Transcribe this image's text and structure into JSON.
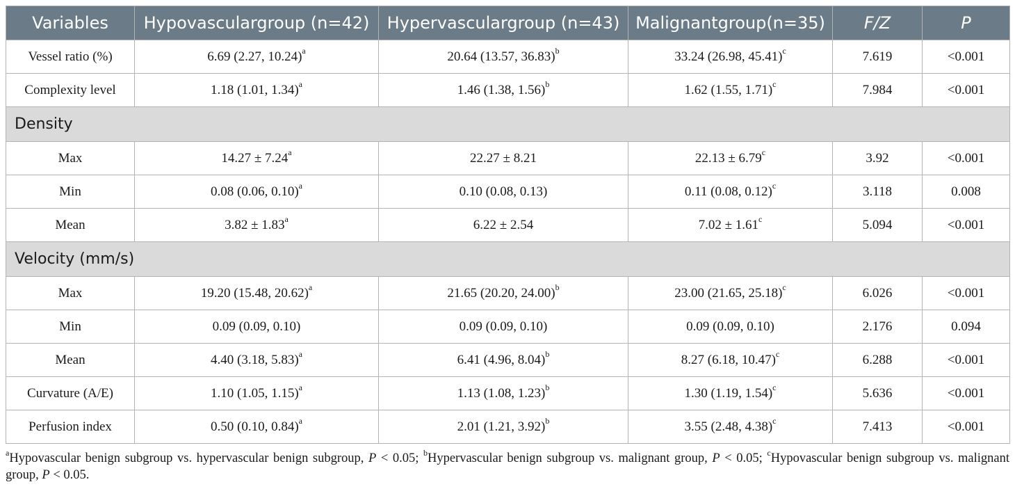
{
  "table": {
    "headers": [
      "Variables",
      "Hypovasculargroup (n=42)",
      "Hypervasculargroup (n=43)",
      "Malignantgroup(n=35)",
      "F/Z",
      "P"
    ],
    "rows": [
      {
        "label": "Vessel ratio (%)",
        "hypo": "6.69 (2.27, 10.24)",
        "hypo_sup": "a",
        "hyper": "20.64 (13.57, 36.83)",
        "hyper_sup": "b",
        "malig": "33.24 (26.98, 45.41)",
        "malig_sup": "c",
        "fz": "7.619",
        "p": "<0.001"
      },
      {
        "label": "Complexity level",
        "hypo": "1.18 (1.01, 1.34)",
        "hypo_sup": "a",
        "hyper": "1.46 (1.38, 1.56)",
        "hyper_sup": "b",
        "malig": "1.62 (1.55, 1.71)",
        "malig_sup": "c",
        "fz": "7.984",
        "p": "<0.001"
      },
      {
        "section": "Density"
      },
      {
        "label": "Max",
        "hypo": "14.27 ± 7.24",
        "hypo_sup": "a",
        "hyper": "22.27 ± 8.21",
        "hyper_sup": "",
        "malig": "22.13 ± 6.79",
        "malig_sup": "c",
        "fz": "3.92",
        "p": "<0.001"
      },
      {
        "label": "Min",
        "hypo": "0.08 (0.06, 0.10)",
        "hypo_sup": "a",
        "hyper": "0.10 (0.08, 0.13)",
        "hyper_sup": "",
        "malig": "0.11 (0.08, 0.12)",
        "malig_sup": "c",
        "fz": "3.118",
        "p": "0.008"
      },
      {
        "label": "Mean",
        "hypo": "3.82 ± 1.83",
        "hypo_sup": "a",
        "hyper": "6.22 ± 2.54",
        "hyper_sup": "",
        "malig": "7.02 ± 1.61",
        "malig_sup": "c",
        "fz": "5.094",
        "p": "<0.001"
      },
      {
        "section": "Velocity (mm/s)"
      },
      {
        "label": "Max",
        "hypo": "19.20 (15.48, 20.62)",
        "hypo_sup": "a",
        "hyper": "21.65 (20.20, 24.00)",
        "hyper_sup": "b",
        "malig": "23.00 (21.65, 25.18)",
        "malig_sup": "c",
        "fz": "6.026",
        "p": "<0.001"
      },
      {
        "label": "Min",
        "hypo": "0.09 (0.09, 0.10)",
        "hypo_sup": "",
        "hyper": "0.09 (0.09, 0.10)",
        "hyper_sup": "",
        "malig": "0.09 (0.09, 0.10)",
        "malig_sup": "",
        "fz": "2.176",
        "p": "0.094"
      },
      {
        "label": "Mean",
        "hypo": "4.40 (3.18, 5.83)",
        "hypo_sup": "a",
        "hyper": "6.41 (4.96, 8.04)",
        "hyper_sup": "b",
        "malig": "8.27 (6.18, 10.47)",
        "malig_sup": "c",
        "fz": "6.288",
        "p": "<0.001"
      },
      {
        "label": "Curvature (A/E)",
        "hypo": "1.10 (1.05, 1.15)",
        "hypo_sup": "a",
        "hyper": "1.13 (1.08, 1.23)",
        "hyper_sup": "b",
        "malig": "1.30 (1.19, 1.54)",
        "malig_sup": "c",
        "fz": "5.636",
        "p": "<0.001"
      },
      {
        "label": "Perfusion index",
        "hypo": "0.50 (0.10, 0.84)",
        "hypo_sup": "a",
        "hyper": "2.01 (1.21, 3.92)",
        "hyper_sup": "b",
        "malig": "3.55 (2.48, 4.38)",
        "malig_sup": "c",
        "fz": "7.413",
        "p": "<0.001"
      }
    ]
  },
  "footnote": {
    "a_mark": "a",
    "a_text": "Hypovascular benign subgroup vs. hypervascular benign subgroup, ",
    "b_mark": "b",
    "b_text": "Hypervascular benign subgroup vs. malignant group, ",
    "c_mark": "c",
    "c_text": "Hypovascular benign subgroup vs. malignant group, ",
    "p_symbol": "P",
    "p_condition": " < 0.05",
    "separator": "; ",
    "end": "."
  },
  "colors": {
    "header_bg": "#6b7b87",
    "header_text": "#ffffff",
    "section_bg": "#dadada",
    "border": "#b3b3b3"
  }
}
